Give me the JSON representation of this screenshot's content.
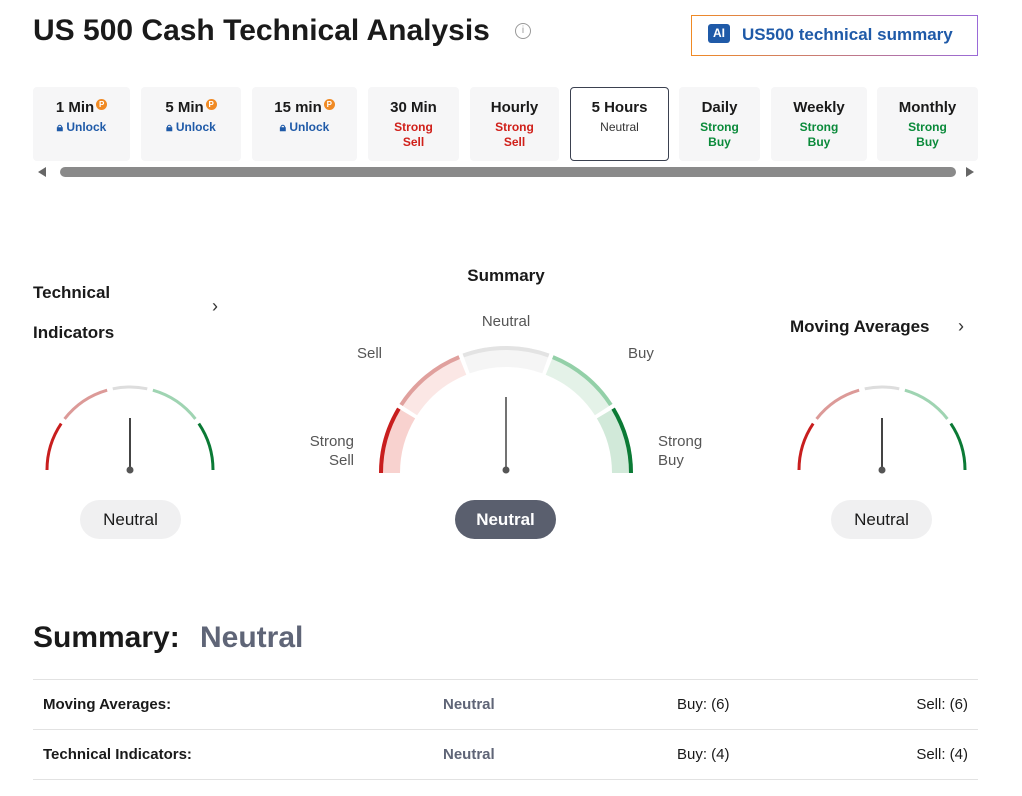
{
  "header": {
    "title": "US 500 Cash Technical Analysis",
    "ai_badge": "AI",
    "ai_button": "US500 technical summary"
  },
  "tabs": [
    {
      "label": "1 Min",
      "status": "Unlock"
    },
    {
      "label": "5 Min",
      "status": "Unlock"
    },
    {
      "label": "15 min",
      "status": "Unlock"
    },
    {
      "label": "30 Min",
      "status": "Strong Sell"
    },
    {
      "label": "Hourly",
      "status": "Strong Sell"
    },
    {
      "label": "5 Hours",
      "status": "Neutral"
    },
    {
      "label": "Daily",
      "status": "Strong Buy"
    },
    {
      "label": "Weekly",
      "status": "Strong Buy"
    },
    {
      "label": "Monthly",
      "status": "Strong Buy"
    }
  ],
  "gauges": {
    "technical": {
      "title": "Technical Indicators",
      "result": "Neutral"
    },
    "summary": {
      "title": "Summary",
      "neutral": "Neutral",
      "sell": "Sell",
      "buy": "Buy",
      "strong_sell": "Strong Sell",
      "strong_buy": "Strong Buy",
      "result": "Neutral"
    },
    "moving": {
      "title": "Moving Averages",
      "result": "Neutral"
    }
  },
  "summary": {
    "label": "Summary:",
    "value": "Neutral",
    "rows": [
      [
        "Moving Averages:",
        "Neutral",
        "Buy: (6)",
        "Sell: (6)"
      ],
      [
        "Technical Indicators:",
        "Neutral",
        "Buy: (4)",
        "Sell: (4)"
      ]
    ]
  }
}
